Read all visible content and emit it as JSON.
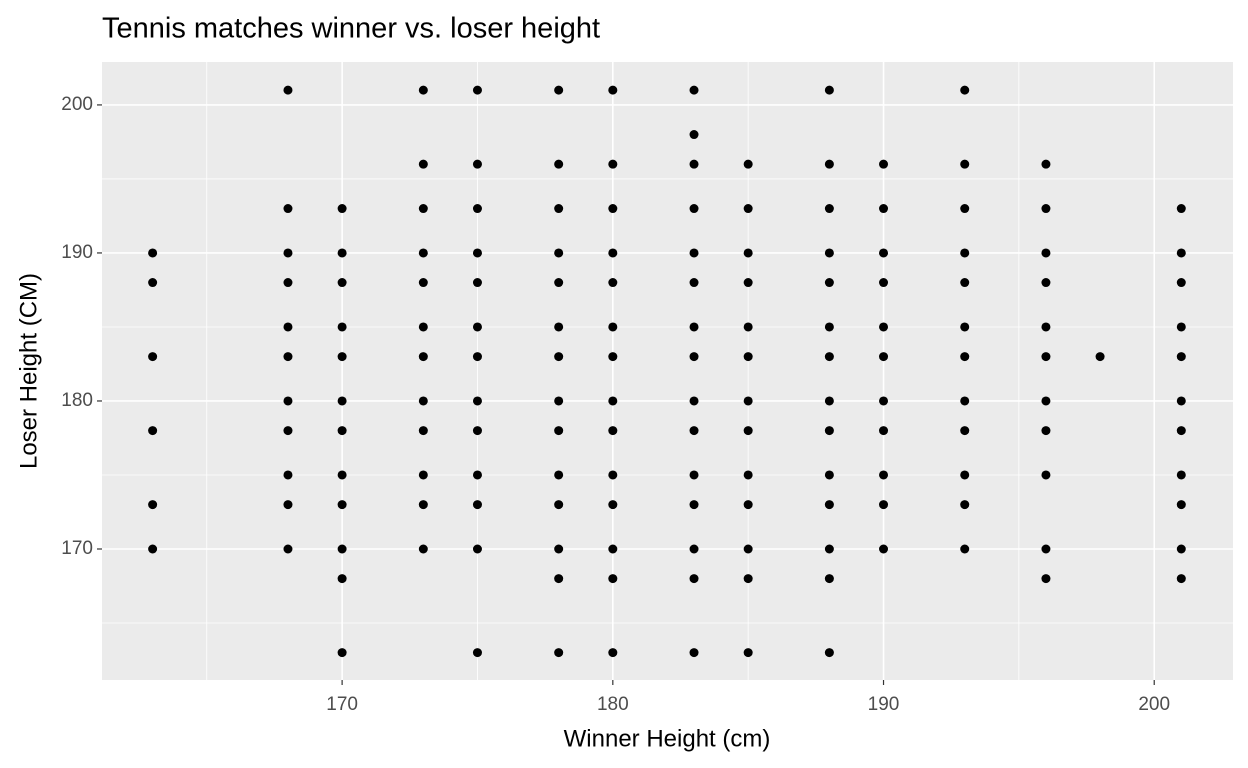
{
  "chart_data": {
    "type": "scatter",
    "title": "Tennis matches winner vs. loser height",
    "x_label": "Winner Height (cm)",
    "y_label": "Loser Height (CM)",
    "color": "#000000",
    "grid": true,
    "panel_color": "#ebebeb",
    "xlim": [
      161.13,
      202.91
    ],
    "ylim": [
      161.15,
      202.9
    ],
    "xticks": [
      170,
      180,
      190,
      200
    ],
    "yticks": [
      170,
      180,
      190,
      200
    ],
    "x_minor_grid": [
      165,
      175,
      185,
      195
    ],
    "y_minor_grid": [
      165,
      175,
      185,
      195
    ],
    "x": [
      163,
      163,
      163,
      163,
      163,
      163,
      168,
      168,
      168,
      168,
      168,
      168,
      168,
      168,
      168,
      168,
      168,
      170,
      170,
      170,
      170,
      170,
      170,
      170,
      170,
      170,
      170,
      170,
      170,
      173,
      173,
      173,
      173,
      173,
      173,
      173,
      173,
      173,
      173,
      173,
      173,
      175,
      175,
      175,
      175,
      175,
      175,
      175,
      175,
      175,
      175,
      175,
      175,
      175,
      178,
      178,
      178,
      178,
      178,
      178,
      178,
      178,
      178,
      178,
      178,
      178,
      178,
      178,
      180,
      180,
      180,
      180,
      180,
      180,
      180,
      180,
      180,
      180,
      180,
      180,
      180,
      180,
      183,
      183,
      183,
      183,
      183,
      183,
      183,
      183,
      183,
      183,
      183,
      183,
      183,
      183,
      183,
      185,
      185,
      185,
      185,
      185,
      185,
      185,
      185,
      185,
      185,
      185,
      185,
      185,
      188,
      188,
      188,
      188,
      188,
      188,
      188,
      188,
      188,
      188,
      188,
      188,
      188,
      188,
      190,
      190,
      190,
      190,
      190,
      190,
      190,
      190,
      190,
      190,
      190,
      193,
      193,
      193,
      193,
      193,
      193,
      193,
      193,
      193,
      193,
      193,
      193,
      196,
      196,
      196,
      196,
      196,
      196,
      196,
      196,
      196,
      196,
      196,
      198,
      201,
      201,
      201,
      201,
      201,
      201,
      201,
      201,
      201,
      201,
      201
    ],
    "y": [
      190,
      188,
      183,
      178,
      173,
      170,
      201,
      193,
      190,
      188,
      185,
      183,
      180,
      178,
      175,
      173,
      170,
      193,
      190,
      188,
      185,
      183,
      180,
      178,
      175,
      173,
      170,
      168,
      163,
      201,
      196,
      193,
      190,
      188,
      185,
      183,
      180,
      178,
      175,
      173,
      170,
      201,
      196,
      193,
      190,
      188,
      185,
      183,
      180,
      178,
      175,
      173,
      170,
      163,
      201,
      196,
      193,
      190,
      188,
      185,
      183,
      180,
      178,
      175,
      173,
      170,
      168,
      163,
      201,
      196,
      193,
      190,
      188,
      185,
      183,
      180,
      178,
      175,
      173,
      170,
      168,
      163,
      201,
      198,
      196,
      193,
      190,
      188,
      185,
      183,
      180,
      178,
      175,
      173,
      170,
      168,
      163,
      196,
      193,
      190,
      188,
      185,
      183,
      180,
      178,
      175,
      173,
      170,
      168,
      163,
      201,
      196,
      193,
      190,
      188,
      185,
      183,
      180,
      178,
      175,
      173,
      170,
      168,
      163,
      196,
      193,
      190,
      188,
      185,
      183,
      180,
      178,
      175,
      173,
      170,
      201,
      196,
      193,
      190,
      188,
      185,
      183,
      180,
      178,
      175,
      173,
      170,
      196,
      193,
      190,
      188,
      185,
      183,
      180,
      178,
      175,
      170,
      168,
      183,
      193,
      190,
      188,
      185,
      183,
      180,
      178,
      175,
      173,
      170,
      168
    ]
  }
}
